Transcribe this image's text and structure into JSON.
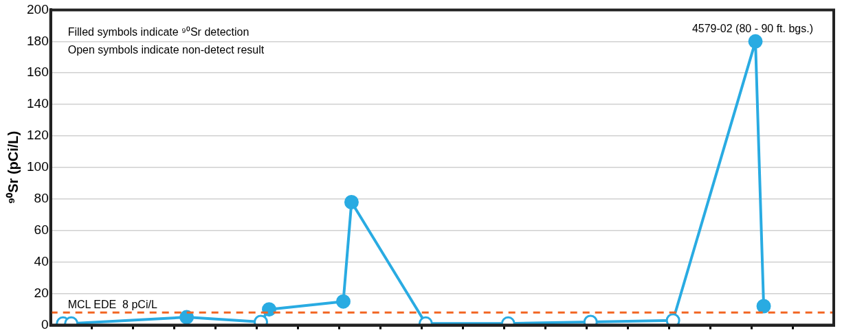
{
  "chart_data": {
    "type": "line",
    "ylabel": "⁹⁰Sr (pCi/L)",
    "annotations": [
      "Filled symbols indicate ⁹⁰Sr detection",
      "Open symbols indicate non-detect result",
      "4579-02 (80 - 90 ft. bgs.)"
    ],
    "categories": [
      null,
      null,
      null,
      null,
      null,
      null,
      null,
      null,
      null,
      null,
      null,
      null,
      null,
      null,
      null,
      null,
      null,
      null,
      null,
      null,
      null,
      null,
      null,
      null,
      null,
      null,
      null,
      null,
      null,
      null,
      null,
      null,
      null,
      null,
      null,
      null,
      null,
      null,
      null,
      null,
      null,
      null,
      null,
      null,
      null,
      null,
      null,
      null,
      null,
      null,
      null,
      null,
      null,
      null,
      null,
      null,
      null,
      null,
      null,
      null,
      null,
      null,
      null,
      null,
      null,
      null,
      null,
      null,
      null,
      null,
      null,
      null,
      null,
      null,
      null,
      null,
      null,
      null,
      null,
      null,
      null,
      null,
      null,
      null,
      null,
      null,
      null,
      null,
      null,
      null,
      null,
      null,
      null,
      null,
      null
    ],
    "ylim": [
      0,
      200
    ],
    "yticks": [
      0,
      20,
      40,
      60,
      80,
      100,
      120,
      140,
      160,
      180,
      200
    ],
    "tick_labels": "y",
    "grid": "y",
    "legend": false,
    "marker": "circle",
    "line_style": "solid",
    "series": [
      {
        "color": "#29abe2",
        "values": [
          null,
          1,
          1,
          null,
          null,
          null,
          null,
          null,
          null,
          null,
          null,
          null,
          null,
          null,
          null,
          null,
          5,
          null,
          null,
          null,
          null,
          null,
          null,
          null,
          null,
          2,
          10,
          null,
          null,
          null,
          null,
          null,
          null,
          null,
          null,
          15,
          78,
          null,
          null,
          null,
          null,
          null,
          null,
          null,
          null,
          1,
          null,
          null,
          null,
          null,
          null,
          null,
          null,
          null,
          null,
          1,
          null,
          null,
          null,
          null,
          null,
          null,
          null,
          null,
          null,
          2,
          null,
          null,
          null,
          null,
          null,
          null,
          null,
          null,
          null,
          3,
          null,
          null,
          null,
          null,
          null,
          null,
          null,
          null,
          null,
          180,
          12,
          null,
          null,
          null,
          null,
          null,
          null,
          null,
          null
        ],
        "colors": [
          null,
          "#ffffff",
          "#ffffff",
          null,
          null,
          null,
          null,
          null,
          null,
          null,
          null,
          null,
          null,
          null,
          null,
          null,
          "#29abe2",
          null,
          null,
          null,
          null,
          null,
          null,
          null,
          null,
          "#ffffff",
          "#29abe2",
          null,
          null,
          null,
          null,
          null,
          null,
          null,
          null,
          "#29abe2",
          "#29abe2",
          null,
          null,
          null,
          null,
          null,
          null,
          null,
          null,
          "#ffffff",
          null,
          null,
          null,
          null,
          null,
          null,
          null,
          null,
          null,
          "#ffffff",
          null,
          null,
          null,
          null,
          null,
          null,
          null,
          null,
          null,
          "#ffffff",
          null,
          null,
          null,
          null,
          null,
          null,
          null,
          null,
          null,
          "#ffffff",
          null,
          null,
          null,
          null,
          null,
          null,
          null,
          null,
          null,
          "#29abe2",
          "#29abe2",
          null,
          null,
          null,
          null,
          null,
          null,
          null,
          null
        ]
      }
    ],
    "ref_lines": [
      {
        "axis": "y",
        "value": 8,
        "label": "MCL EDE  8 pCi/L",
        "color": "#f26522",
        "line_style": "dashed"
      }
    ]
  }
}
